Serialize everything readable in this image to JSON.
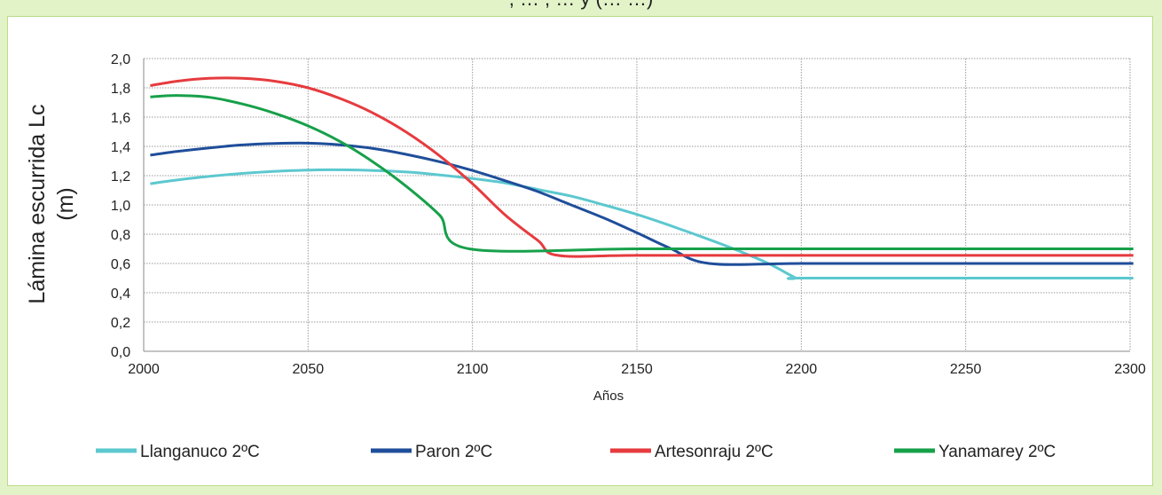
{
  "header": {
    "title_cut": ", … , …  y (… …)"
  },
  "chart_data": {
    "type": "line",
    "title": "",
    "xlabel": "Años",
    "ylabel_lines": [
      "Lámina escurrida Lc",
      "(m)"
    ],
    "xlim": [
      2000,
      2300
    ],
    "ylim": [
      0.0,
      2.0
    ],
    "xticks": [
      2000,
      2050,
      2100,
      2150,
      2200,
      2250,
      2300
    ],
    "yticks": [
      "0,0",
      "0,2",
      "0,4",
      "0,6",
      "0,8",
      "1,0",
      "1,2",
      "1,4",
      "1,6",
      "1,8",
      "2,0"
    ],
    "grid": true,
    "legend_position": "bottom",
    "series": [
      {
        "name": "Llanganuco 2ºC",
        "color": "#5cc8cf",
        "x": [
          2002,
          2010,
          2020,
          2030,
          2040,
          2050,
          2058,
          2070,
          2080,
          2090,
          2100,
          2110,
          2120,
          2130,
          2140,
          2150,
          2160,
          2170,
          2180,
          2190,
          2198,
          2200,
          2250,
          2301
        ],
        "y": [
          1.145,
          1.17,
          1.195,
          1.215,
          1.23,
          1.238,
          1.24,
          1.235,
          1.225,
          1.205,
          1.18,
          1.15,
          1.105,
          1.06,
          1.0,
          0.935,
          0.86,
          0.78,
          0.695,
          0.6,
          0.505,
          0.5,
          0.5,
          0.5
        ]
      },
      {
        "name": "Paron 2ºC",
        "color": "#1f4e9a",
        "x": [
          2002,
          2010,
          2020,
          2030,
          2040,
          2050,
          2060,
          2070,
          2080,
          2090,
          2100,
          2110,
          2120,
          2130,
          2140,
          2150,
          2160,
          2172,
          2200,
          2250,
          2301
        ],
        "y": [
          1.34,
          1.365,
          1.39,
          1.41,
          1.42,
          1.422,
          1.41,
          1.385,
          1.345,
          1.295,
          1.235,
          1.165,
          1.09,
          1.0,
          0.91,
          0.81,
          0.705,
          0.6,
          0.6,
          0.6,
          0.6
        ]
      },
      {
        "name": "Artesonraju 2ºC",
        "color": "#e63b3f",
        "x": [
          2002,
          2010,
          2020,
          2030,
          2040,
          2050,
          2060,
          2070,
          2080,
          2090,
          2100,
          2110,
          2120,
          2126,
          2150,
          2200,
          2250,
          2301
        ],
        "y": [
          1.815,
          1.845,
          1.865,
          1.865,
          1.845,
          1.8,
          1.725,
          1.625,
          1.495,
          1.335,
          1.145,
          0.93,
          0.755,
          0.655,
          0.655,
          0.655,
          0.655,
          0.655
        ]
      },
      {
        "name": "Yanamarey 2ºC",
        "color": "#17a04a",
        "x": [
          2002,
          2010,
          2020,
          2030,
          2040,
          2050,
          2060,
          2070,
          2080,
          2090,
          2099,
          2150,
          2200,
          2250,
          2301
        ],
        "y": [
          1.738,
          1.748,
          1.735,
          1.69,
          1.625,
          1.54,
          1.43,
          1.29,
          1.125,
          0.93,
          0.7,
          0.7,
          0.7,
          0.7,
          0.7
        ]
      }
    ]
  }
}
